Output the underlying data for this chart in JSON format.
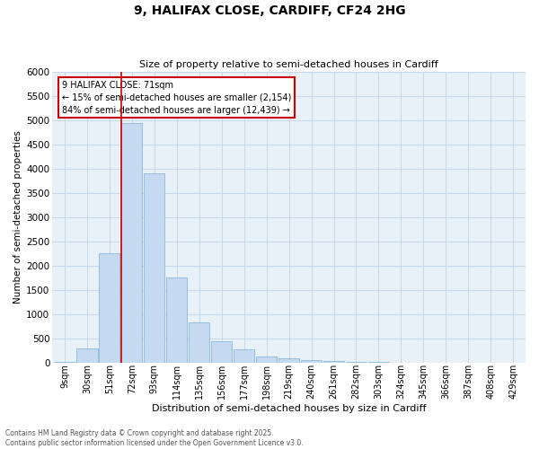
{
  "title1": "9, HALIFAX CLOSE, CARDIFF, CF24 2HG",
  "title2": "Size of property relative to semi-detached houses in Cardiff",
  "xlabel": "Distribution of semi-detached houses by size in Cardiff",
  "ylabel": "Number of semi-detached properties",
  "categories": [
    "9sqm",
    "30sqm",
    "51sqm",
    "72sqm",
    "93sqm",
    "114sqm",
    "135sqm",
    "156sqm",
    "177sqm",
    "198sqm",
    "219sqm",
    "240sqm",
    "261sqm",
    "282sqm",
    "303sqm",
    "324sqm",
    "345sqm",
    "366sqm",
    "387sqm",
    "408sqm",
    "429sqm"
  ],
  "values": [
    20,
    290,
    2250,
    4950,
    3900,
    1750,
    830,
    430,
    280,
    130,
    80,
    50,
    25,
    10,
    5,
    3,
    2,
    1,
    1,
    1,
    1
  ],
  "bar_color": "#c5d9f1",
  "bar_edge_color": "#7bafd4",
  "property_line_index": 3,
  "annotation_text_line1": "9 HALIFAX CLOSE: 71sqm",
  "annotation_text_line2": "← 15% of semi-detached houses are smaller (2,154)",
  "annotation_text_line3": "84% of semi-detached houses are larger (12,439) →",
  "ylim": [
    0,
    6000
  ],
  "yticks": [
    0,
    500,
    1000,
    1500,
    2000,
    2500,
    3000,
    3500,
    4000,
    4500,
    5000,
    5500,
    6000
  ],
  "grid_color": "#c8d8eb",
  "bg_color": "#e8f0f8",
  "red_line_color": "#cc0000",
  "box_edge_color": "#cc0000",
  "footer_line1": "Contains HM Land Registry data © Crown copyright and database right 2025.",
  "footer_line2": "Contains public sector information licensed under the Open Government Licence v3.0."
}
